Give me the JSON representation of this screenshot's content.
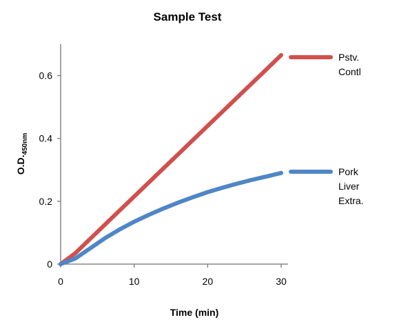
{
  "chart_data": {
    "type": "line",
    "title": "Sample Test",
    "xlabel": "Time (min)",
    "ylabel": {
      "main": "O.D.",
      "sub": "450nm"
    },
    "xlim": [
      0,
      30
    ],
    "ylim": [
      0,
      0.7
    ],
    "xticks": [
      "0",
      "10",
      "20",
      "30"
    ],
    "yticks": [
      "0",
      "0.2",
      "0.4",
      "0.6"
    ],
    "grid": false,
    "legend_position": "right",
    "series": [
      {
        "name": "Pstv. Contl",
        "legend_lines": [
          "Pstv.",
          "Contl"
        ],
        "color": "#d0504d",
        "x": [
          0,
          2,
          4,
          6,
          8,
          10,
          12,
          14,
          16,
          18,
          20,
          22,
          24,
          26,
          28,
          30
        ],
        "y": [
          0,
          0.035,
          0.08,
          0.125,
          0.17,
          0.215,
          0.26,
          0.305,
          0.35,
          0.395,
          0.44,
          0.485,
          0.53,
          0.575,
          0.62,
          0.665
        ]
      },
      {
        "name": "Pork Liver Extra.",
        "legend_lines": [
          "Pork",
          "Liver",
          "Extra."
        ],
        "color": "#4f86c6",
        "x": [
          0,
          2,
          4,
          6,
          8,
          10,
          12,
          14,
          16,
          18,
          20,
          22,
          24,
          26,
          28,
          30
        ],
        "y": [
          0,
          0.018,
          0.05,
          0.082,
          0.11,
          0.135,
          0.157,
          0.177,
          0.196,
          0.213,
          0.229,
          0.243,
          0.256,
          0.268,
          0.279,
          0.29
        ]
      }
    ]
  }
}
